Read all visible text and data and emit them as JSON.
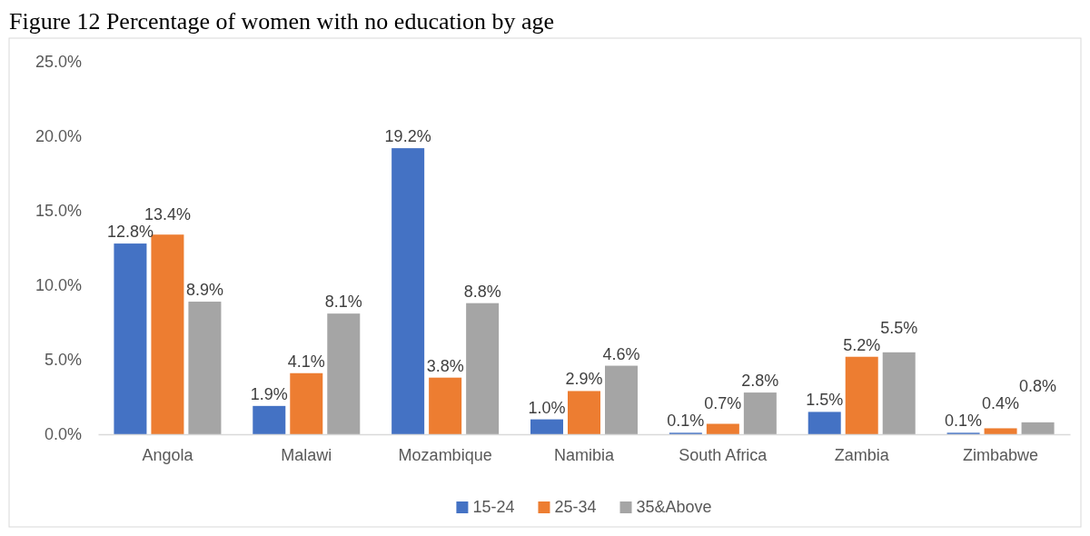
{
  "chart_data": {
    "type": "bar",
    "title": "Figure 12 Percentage of women with no education by age",
    "categories": [
      "Angola",
      "Malawi",
      "Mozambique",
      "Namibia",
      "South Africa",
      "Zambia",
      "Zimbabwe"
    ],
    "series": [
      {
        "name": "15-24",
        "color": "#4472c4",
        "values": [
          12.8,
          1.9,
          19.2,
          1.0,
          0.1,
          1.5,
          0.1
        ],
        "value_labels": [
          "12.8%",
          "1.9%",
          "19.2%",
          "1.0%",
          "0.1%",
          "1.5%",
          "0.1%"
        ]
      },
      {
        "name": "25-34",
        "color": "#ed7d31",
        "values": [
          13.4,
          4.1,
          3.8,
          2.9,
          0.7,
          5.2,
          0.4
        ],
        "value_labels": [
          "13.4%",
          "4.1%",
          "3.8%",
          "2.9%",
          "0.7%",
          "5.2%",
          "0.4%"
        ]
      },
      {
        "name": "35&Above",
        "color": "#a5a5a5",
        "values": [
          8.9,
          8.1,
          8.8,
          4.6,
          2.8,
          5.5,
          0.8
        ],
        "value_labels": [
          "8.9%",
          "8.1%",
          "8.8%",
          "4.6%",
          "2.8%",
          "5.5%",
          "0.8%"
        ]
      }
    ],
    "ylim": [
      0,
      25
    ],
    "yticks": [
      {
        "value": 0,
        "label": "0.0%"
      },
      {
        "value": 5,
        "label": "5.0%"
      },
      {
        "value": 10,
        "label": "10.0%"
      },
      {
        "value": 15,
        "label": "15.0%"
      },
      {
        "value": 20,
        "label": "20.0%"
      },
      {
        "value": 25,
        "label": "25.0%"
      }
    ],
    "legend": "bottom"
  }
}
